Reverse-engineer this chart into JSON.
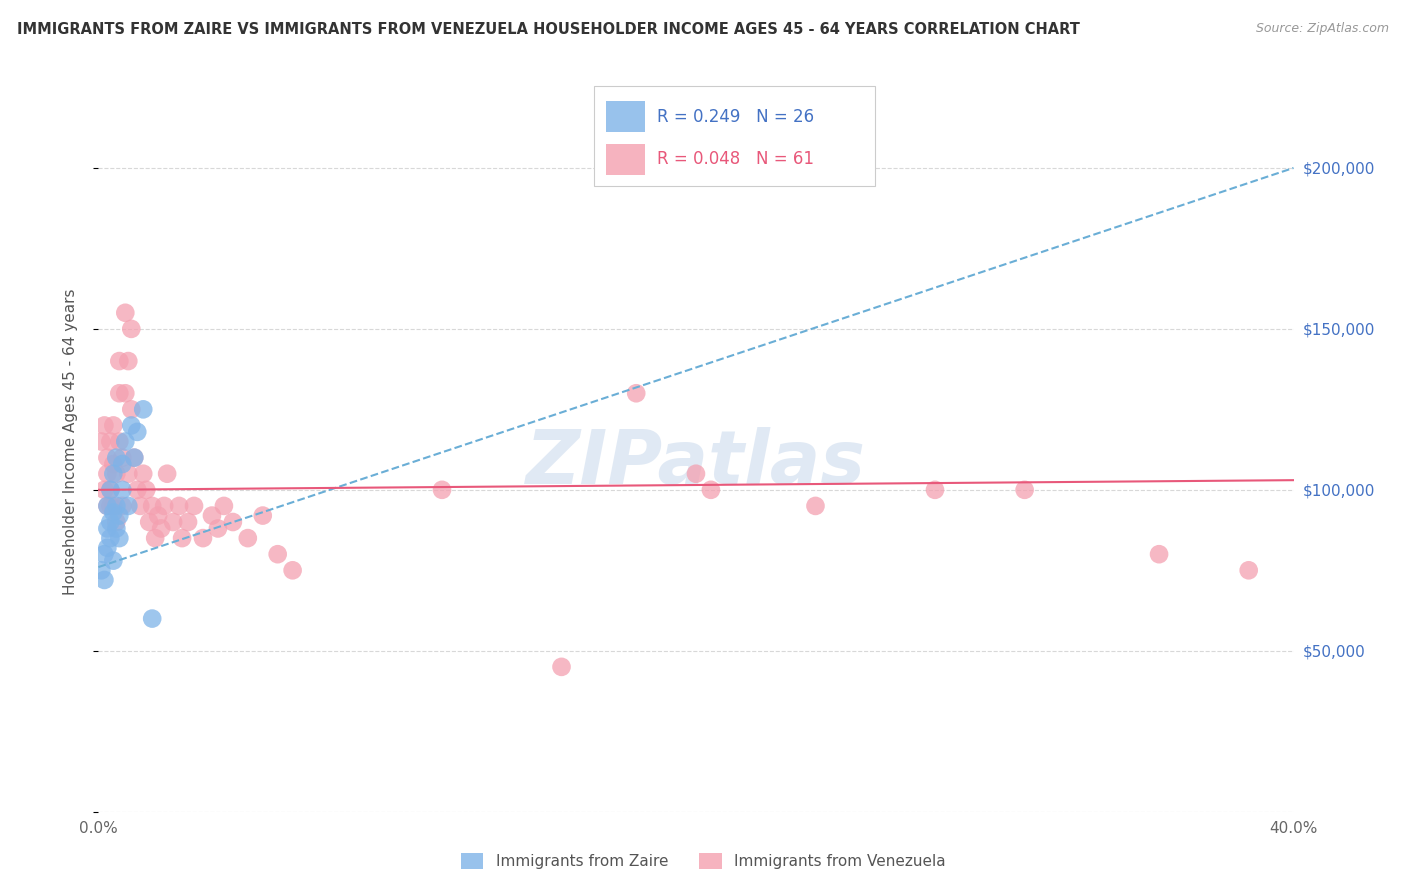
{
  "title": "IMMIGRANTS FROM ZAIRE VS IMMIGRANTS FROM VENEZUELA HOUSEHOLDER INCOME AGES 45 - 64 YEARS CORRELATION CHART",
  "source": "Source: ZipAtlas.com",
  "ylabel": "Householder Income Ages 45 - 64 years",
  "xlim": [
    0.0,
    0.4
  ],
  "ylim": [
    0,
    230000
  ],
  "zaire_color": "#7EB3E8",
  "venezuela_color": "#F4A0B0",
  "zaire_line_color": "#6AAED6",
  "venezuela_line_color": "#E8587A",
  "background_color": "#ffffff",
  "grid_color": "#d8d8d8",
  "watermark": "ZIPatlas",
  "zaire_x": [
    0.001,
    0.002,
    0.002,
    0.003,
    0.003,
    0.003,
    0.004,
    0.004,
    0.004,
    0.005,
    0.005,
    0.005,
    0.006,
    0.006,
    0.006,
    0.007,
    0.007,
    0.008,
    0.008,
    0.009,
    0.01,
    0.011,
    0.012,
    0.013,
    0.015,
    0.018
  ],
  "zaire_y": [
    75000,
    80000,
    72000,
    88000,
    95000,
    82000,
    90000,
    85000,
    100000,
    93000,
    105000,
    78000,
    95000,
    88000,
    110000,
    92000,
    85000,
    100000,
    108000,
    115000,
    95000,
    120000,
    110000,
    118000,
    125000,
    60000
  ],
  "venezuela_x": [
    0.001,
    0.002,
    0.002,
    0.003,
    0.003,
    0.003,
    0.004,
    0.004,
    0.004,
    0.005,
    0.005,
    0.005,
    0.006,
    0.006,
    0.007,
    0.007,
    0.007,
    0.008,
    0.008,
    0.009,
    0.009,
    0.01,
    0.01,
    0.011,
    0.011,
    0.012,
    0.013,
    0.014,
    0.015,
    0.016,
    0.017,
    0.018,
    0.019,
    0.02,
    0.021,
    0.022,
    0.023,
    0.025,
    0.027,
    0.028,
    0.03,
    0.032,
    0.035,
    0.038,
    0.04,
    0.042,
    0.045,
    0.05,
    0.055,
    0.06,
    0.065,
    0.115,
    0.155,
    0.18,
    0.2,
    0.205,
    0.24,
    0.28,
    0.31,
    0.355,
    0.385
  ],
  "venezuela_y": [
    115000,
    120000,
    100000,
    110000,
    95000,
    105000,
    115000,
    100000,
    95000,
    108000,
    120000,
    95000,
    105000,
    90000,
    115000,
    140000,
    130000,
    110000,
    95000,
    130000,
    155000,
    140000,
    105000,
    150000,
    125000,
    110000,
    100000,
    95000,
    105000,
    100000,
    90000,
    95000,
    85000,
    92000,
    88000,
    95000,
    105000,
    90000,
    95000,
    85000,
    90000,
    95000,
    85000,
    92000,
    88000,
    95000,
    90000,
    85000,
    92000,
    80000,
    75000,
    100000,
    45000,
    130000,
    105000,
    100000,
    95000,
    100000,
    100000,
    80000,
    75000
  ],
  "zaire_line_x0": 0.0,
  "zaire_line_y0": 76000,
  "zaire_line_x1": 0.4,
  "zaire_line_y1": 200000,
  "venezuela_line_x0": 0.0,
  "venezuela_line_y0": 100000,
  "venezuela_line_x1": 0.4,
  "venezuela_line_y1": 103000
}
